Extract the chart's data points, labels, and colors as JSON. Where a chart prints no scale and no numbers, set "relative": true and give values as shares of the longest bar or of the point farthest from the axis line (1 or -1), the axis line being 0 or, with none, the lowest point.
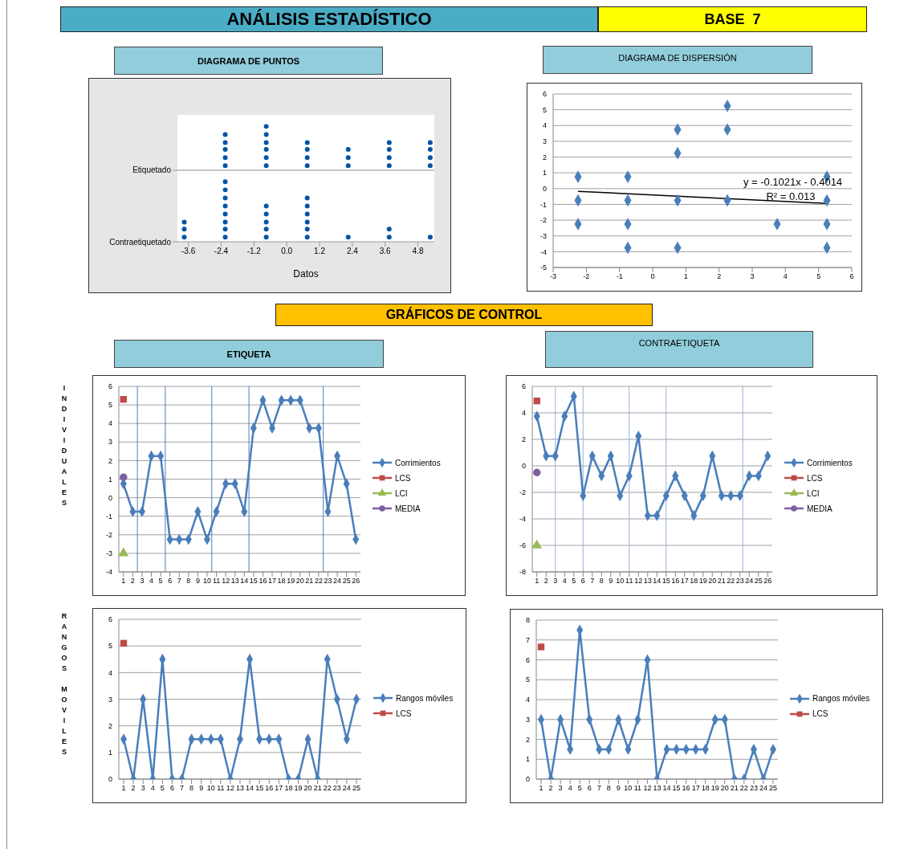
{
  "chart_data": [
    {
      "type": "scatter",
      "title": "DIAGRAMA DE PUNTOS",
      "annotations": [
        "ANÁLISIS ESTADÍSTICO",
        "BASE  7"
      ],
      "xlabel": "Datos",
      "relative": true,
      "xlim": [
        -4.0,
        5.4
      ],
      "xticks": [
        -3.6,
        -2.4,
        -1.2,
        {
          "value": 0,
          "label": "0.0"
        },
        1.2,
        2.4,
        3.6,
        4.8
      ],
      "marker": "circle",
      "series": [
        {
          "name": "Etiquetado",
          "color": "#0054a6",
          "x": [
            -2.25,
            -2.25,
            -2.25,
            -2.25,
            -2.25,
            -0.75,
            -0.75,
            -0.75,
            -0.75,
            -0.75,
            -0.75,
            0.75,
            0.75,
            0.75,
            0.75,
            2.25,
            2.25,
            2.25,
            3.75,
            3.75,
            3.75,
            3.75,
            5.25,
            5.25,
            5.25,
            5.25
          ],
          "values": [
            0.66,
            0.73,
            0.8,
            0.86,
            0.93,
            0.66,
            0.73,
            0.8,
            0.86,
            0.93,
            1,
            0.66,
            0.73,
            0.8,
            0.86,
            0.66,
            0.73,
            0.8,
            0.66,
            0.73,
            0.8,
            0.86,
            0.66,
            0.73,
            0.8,
            0.86
          ]
        },
        {
          "name": "Contraetiquetado",
          "color": "#0054a6",
          "x": [
            -3.75,
            -3.75,
            -3.75,
            -2.25,
            -2.25,
            -2.25,
            -2.25,
            -2.25,
            -2.25,
            -2.25,
            -2.25,
            -0.75,
            -0.75,
            -0.75,
            -0.75,
            -0.75,
            0.75,
            0.75,
            0.75,
            0.75,
            0.75,
            0.75,
            2.25,
            3.75,
            3.75,
            5.25
          ],
          "values": [
            0.04,
            0.11,
            0.17,
            0.04,
            0.11,
            0.17,
            0.24,
            0.31,
            0.38,
            0.45,
            0.52,
            0.04,
            0.11,
            0.17,
            0.24,
            0.31,
            0.04,
            0.11,
            0.17,
            0.24,
            0.31,
            0.38,
            0.04,
            0.04,
            0.11,
            0.04
          ]
        }
      ]
    },
    {
      "type": "scatter",
      "title": "DIAGRAMA DE DISPERSIÓN",
      "annotations": [
        "y = -0.1021x - 0.4014",
        "R² = 0.013"
      ],
      "xlim": [
        -3,
        6
      ],
      "xticks": [
        -3,
        -2,
        -1,
        0,
        1,
        2,
        3,
        4,
        5,
        6
      ],
      "ylim": [
        -5,
        6
      ],
      "yticks": [
        -5,
        -4,
        -3,
        -2,
        -1,
        0,
        1,
        2,
        3,
        4,
        5,
        6
      ],
      "grid": "y",
      "marker": "diamond",
      "series": [
        {
          "color": "#4a7ebb",
          "x": [
            -2.25,
            -2.25,
            -2.25,
            -0.75,
            -0.75,
            -0.75,
            -0.75,
            0.75,
            0.75,
            0.75,
            0.75,
            2.25,
            2.25,
            2.25,
            3.75,
            5.25,
            5.25,
            5.25,
            5.25
          ],
          "values": [
            0.75,
            -0.75,
            -2.25,
            0.75,
            -0.75,
            -2.25,
            -3.75,
            3.75,
            2.25,
            -0.75,
            -3.75,
            5.25,
            3.75,
            -0.75,
            -2.25,
            0.75,
            -0.75,
            -2.25,
            -3.75
          ]
        },
        {
          "type": "line",
          "marker": "none",
          "color": "#000000",
          "x": [
            -2.25,
            5.25
          ],
          "values": [
            -0.17,
            -0.94
          ]
        }
      ]
    },
    {
      "type": "line",
      "title": "ETIQUETA",
      "annotations": [
        "GRÁFICOS DE CONTROL"
      ],
      "ylabel": "INDIVIDUALES",
      "x": [
        1,
        2,
        3,
        4,
        5,
        6,
        7,
        8,
        9,
        10,
        11,
        12,
        13,
        14,
        15,
        16,
        17,
        18,
        19,
        20,
        21,
        22,
        23,
        24,
        25,
        26
      ],
      "xlim": [
        0.5,
        26.5
      ],
      "xticks": [
        1,
        2,
        3,
        4,
        5,
        6,
        7,
        8,
        9,
        10,
        11,
        12,
        13,
        14,
        15,
        16,
        17,
        18,
        19,
        20,
        21,
        22,
        23,
        24,
        25,
        26
      ],
      "ylim": [
        -4,
        6
      ],
      "yticks": [
        -4,
        -3,
        -2,
        -1,
        0,
        1,
        2,
        3,
        4,
        5,
        6
      ],
      "grid": "y",
      "legend": "right",
      "marker": "diamond",
      "series": [
        {
          "name": "Corrimientos",
          "color": "#4a7ebb",
          "values": [
            0.75,
            -0.75,
            -0.75,
            2.25,
            2.25,
            -2.25,
            -2.25,
            -2.25,
            -0.75,
            -2.25,
            -0.75,
            0.75,
            0.75,
            -0.75,
            3.75,
            5.25,
            3.75,
            5.25,
            5.25,
            5.25,
            3.75,
            3.75,
            -0.75,
            2.25,
            0.75,
            -2.25
          ]
        },
        {
          "name": "LCS",
          "type": "scatter",
          "marker": "square",
          "color": "#be4b48",
          "x": [
            1
          ],
          "values": [
            5.3
          ]
        },
        {
          "name": "LCI",
          "type": "scatter",
          "marker": "triangle",
          "color": "#98b954",
          "x": [
            1
          ],
          "values": [
            -3.0
          ]
        },
        {
          "name": "MEDIA",
          "type": "scatter",
          "marker": "circle",
          "color": "#7d60a0",
          "x": [
            1
          ],
          "values": [
            1.1
          ]
        }
      ],
      "ref_lines": [
        {
          "axis": "x",
          "value": 2.5,
          "color": "#4a7ebb"
        },
        {
          "axis": "x",
          "value": 5.5,
          "color": "#4a7ebb"
        },
        {
          "axis": "x",
          "value": 10.5,
          "color": "#4a7ebb"
        },
        {
          "axis": "x",
          "value": 14.5,
          "color": "#4a7ebb"
        },
        {
          "axis": "x",
          "value": 22.5,
          "color": "#4a7ebb"
        }
      ]
    },
    {
      "type": "line",
      "title": "CONTRAETIQUETA",
      "x": [
        1,
        2,
        3,
        4,
        5,
        6,
        7,
        8,
        9,
        10,
        11,
        12,
        13,
        14,
        15,
        16,
        17,
        18,
        19,
        20,
        21,
        22,
        23,
        24,
        25,
        26
      ],
      "xlim": [
        0.5,
        26.5
      ],
      "xticks": [
        1,
        2,
        3,
        4,
        5,
        6,
        7,
        8,
        9,
        10,
        11,
        12,
        13,
        14,
        15,
        16,
        17,
        18,
        19,
        20,
        21,
        22,
        23,
        24,
        25,
        26
      ],
      "ylim": [
        -8,
        6
      ],
      "yticks": [
        -8,
        -6,
        -4,
        -2,
        0,
        2,
        4,
        6
      ],
      "grid": "y",
      "legend": "right",
      "marker": "diamond",
      "series": [
        {
          "name": "Corrimientos",
          "color": "#4a7ebb",
          "values": [
            3.75,
            0.75,
            0.75,
            3.75,
            5.25,
            -2.25,
            0.75,
            -0.75,
            0.75,
            -2.25,
            -0.75,
            2.25,
            -3.75,
            -3.75,
            -2.25,
            -0.75,
            -2.25,
            -3.75,
            -2.25,
            0.75,
            -2.25,
            -2.25,
            -2.25,
            -0.75,
            -0.75,
            0.75
          ]
        },
        {
          "name": "LCS",
          "type": "scatter",
          "marker": "square",
          "color": "#be4b48",
          "x": [
            1
          ],
          "values": [
            4.9
          ]
        },
        {
          "name": "LCI",
          "type": "scatter",
          "marker": "triangle",
          "color": "#98b954",
          "x": [
            1
          ],
          "values": [
            -6.0
          ]
        },
        {
          "name": "MEDIA",
          "type": "scatter",
          "marker": "circle",
          "color": "#7d60a0",
          "x": [
            1
          ],
          "values": [
            -0.5
          ]
        }
      ],
      "ref_lines": [
        {
          "axis": "x",
          "value": 3,
          "color": "#95b3d7"
        },
        {
          "axis": "x",
          "value": 6,
          "color": "#95b3d7"
        },
        {
          "axis": "x",
          "value": 11,
          "color": "#95b3d7"
        },
        {
          "axis": "x",
          "value": 15,
          "color": "#95b3d7"
        },
        {
          "axis": "x",
          "value": 23.3,
          "color": "#95b3d7"
        }
      ]
    },
    {
      "type": "line",
      "ylabel": "RANGOS MOVILES",
      "x": [
        1,
        2,
        3,
        4,
        5,
        6,
        7,
        8,
        9,
        10,
        11,
        12,
        13,
        14,
        15,
        16,
        17,
        18,
        19,
        20,
        21,
        22,
        23,
        24,
        25
      ],
      "xlim": [
        0.5,
        25.5
      ],
      "xticks": [
        1,
        2,
        3,
        4,
        5,
        6,
        7,
        8,
        9,
        10,
        11,
        12,
        13,
        14,
        15,
        16,
        17,
        18,
        19,
        20,
        21,
        22,
        23,
        24,
        25
      ],
      "ylim": [
        0,
        6
      ],
      "yticks": [
        0,
        1,
        2,
        3,
        4,
        5,
        6
      ],
      "grid": "y",
      "legend": "right",
      "marker": "diamond",
      "series": [
        {
          "name": "Rangos móviles",
          "color": "#4a7ebb",
          "values": [
            1.5,
            0,
            3,
            0,
            4.5,
            0,
            0,
            1.5,
            1.5,
            1.5,
            1.5,
            0,
            1.5,
            4.5,
            1.5,
            1.5,
            1.5,
            0,
            0,
            1.5,
            0,
            4.5,
            3,
            1.5,
            3
          ]
        },
        {
          "name": "LCS",
          "type": "scatter",
          "marker": "square",
          "color": "#be4b48",
          "x": [
            1
          ],
          "values": [
            5.1
          ]
        }
      ]
    },
    {
      "type": "line",
      "x": [
        1,
        2,
        3,
        4,
        5,
        6,
        7,
        8,
        9,
        10,
        11,
        12,
        13,
        14,
        15,
        16,
        17,
        18,
        19,
        20,
        21,
        22,
        23,
        24,
        25
      ],
      "xlim": [
        0.5,
        25.5
      ],
      "xticks": [
        1,
        2,
        3,
        4,
        5,
        6,
        7,
        8,
        9,
        10,
        11,
        12,
        13,
        14,
        15,
        16,
        17,
        18,
        19,
        20,
        21,
        22,
        23,
        24,
        25
      ],
      "ylim": [
        0,
        8
      ],
      "yticks": [
        0,
        1,
        2,
        3,
        4,
        5,
        6,
        7,
        8
      ],
      "grid": "y",
      "legend": "right",
      "marker": "diamond",
      "series": [
        {
          "name": "Rangos móviles",
          "color": "#4a7ebb",
          "values": [
            3,
            0,
            3,
            1.5,
            7.5,
            3,
            1.5,
            1.5,
            3,
            1.5,
            3,
            6,
            0,
            1.5,
            1.5,
            1.5,
            1.5,
            1.5,
            3,
            3,
            0,
            0,
            1.5,
            0,
            1.5
          ]
        },
        {
          "name": "LCS",
          "type": "scatter",
          "marker": "square",
          "color": "#be4b48",
          "x": [
            1
          ],
          "values": [
            6.65
          ]
        }
      ]
    }
  ]
}
